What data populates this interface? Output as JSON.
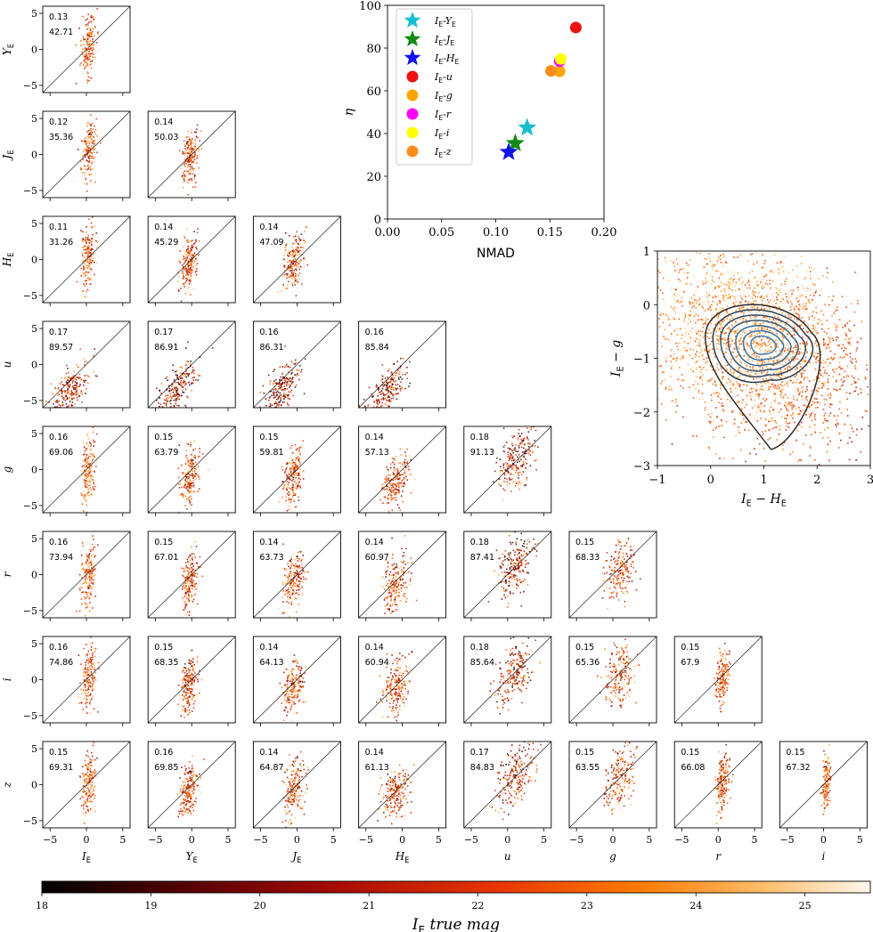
{
  "grid": {
    "ylabels": [
      {
        "main": "Y",
        "sub": "E"
      },
      {
        "main": "J",
        "sub": "E"
      },
      {
        "main": "H",
        "sub": "E"
      },
      {
        "main": "u",
        "sub": ""
      },
      {
        "main": "g",
        "sub": ""
      },
      {
        "main": "r",
        "sub": ""
      },
      {
        "main": "i",
        "sub": ""
      },
      {
        "main": "z",
        "sub": ""
      }
    ],
    "xlabels": [
      {
        "main": "I",
        "sub": "E"
      },
      {
        "main": "Y",
        "sub": "E"
      },
      {
        "main": "J",
        "sub": "E"
      },
      {
        "main": "H",
        "sub": "E"
      },
      {
        "main": "u",
        "sub": ""
      },
      {
        "main": "g",
        "sub": ""
      },
      {
        "main": "r",
        "sub": ""
      },
      {
        "main": "i",
        "sub": ""
      }
    ],
    "ticks": [
      "−5",
      "0",
      "5"
    ],
    "panels": [
      [
        {
          "nmad": "0.13",
          "eta": "42.71"
        }
      ],
      [
        {
          "nmad": "0.12",
          "eta": "35.36"
        },
        {
          "nmad": "0.14",
          "eta": "50.03"
        }
      ],
      [
        {
          "nmad": "0.11",
          "eta": "31.26"
        },
        {
          "nmad": "0.14",
          "eta": "45.29"
        },
        {
          "nmad": "0.14",
          "eta": "47.09"
        }
      ],
      [
        {
          "nmad": "0.17",
          "eta": "89.57"
        },
        {
          "nmad": "0.17",
          "eta": "86.91"
        },
        {
          "nmad": "0.16",
          "eta": "86.31"
        },
        {
          "nmad": "0.16",
          "eta": "85.84"
        }
      ],
      [
        {
          "nmad": "0.16",
          "eta": "69.06"
        },
        {
          "nmad": "0.15",
          "eta": "63.79"
        },
        {
          "nmad": "0.15",
          "eta": "59.81"
        },
        {
          "nmad": "0.14",
          "eta": "57.13"
        },
        {
          "nmad": "0.18",
          "eta": "91.13"
        }
      ],
      [
        {
          "nmad": "0.16",
          "eta": "73.94"
        },
        {
          "nmad": "0.15",
          "eta": "67.01"
        },
        {
          "nmad": "0.14",
          "eta": "63.73"
        },
        {
          "nmad": "0.14",
          "eta": "60.97"
        },
        {
          "nmad": "0.18",
          "eta": "87.41"
        },
        {
          "nmad": "0.15",
          "eta": "68.33"
        }
      ],
      [
        {
          "nmad": "0.16",
          "eta": "74.86"
        },
        {
          "nmad": "0.15",
          "eta": "68.35"
        },
        {
          "nmad": "0.14",
          "eta": "64.13"
        },
        {
          "nmad": "0.14",
          "eta": "60.94"
        },
        {
          "nmad": "0.18",
          "eta": "85.64"
        },
        {
          "nmad": "0.15",
          "eta": "65.36"
        },
        {
          "nmad": "0.15",
          "eta": "67.9"
        }
      ],
      [
        {
          "nmad": "0.15",
          "eta": "69.31"
        },
        {
          "nmad": "0.16",
          "eta": "69.85"
        },
        {
          "nmad": "0.14",
          "eta": "64.87"
        },
        {
          "nmad": "0.14",
          "eta": "61.13"
        },
        {
          "nmad": "0.17",
          "eta": "84.83"
        },
        {
          "nmad": "0.15",
          "eta": "63.55"
        },
        {
          "nmad": "0.15",
          "eta": "66.08"
        },
        {
          "nmad": "0.15",
          "eta": "67.32"
        }
      ]
    ]
  },
  "chart_data": [
    {
      "type": "scatter",
      "title": "",
      "xlabel": "NMAD",
      "ylabel": "η",
      "xlim": [
        0.0,
        0.2
      ],
      "ylim": [
        0,
        100
      ],
      "xticks": [
        "0.00",
        "0.05",
        "0.10",
        "0.15",
        "0.20"
      ],
      "yticks": [
        "0",
        "20",
        "40",
        "60",
        "80",
        "100"
      ],
      "series": [
        {
          "name": "IE-YE",
          "label_main": "I",
          "label_sub": "E",
          "label_rest": "-Y",
          "label_rest_sub": "E",
          "marker": "star",
          "color": "#17becf",
          "x": 0.129,
          "y": 42.7
        },
        {
          "name": "IE-JE",
          "label_main": "I",
          "label_sub": "E",
          "label_rest": "-J",
          "label_rest_sub": "E",
          "marker": "star",
          "color": "#138a13",
          "x": 0.118,
          "y": 35.4
        },
        {
          "name": "IE-HE",
          "label_main": "I",
          "label_sub": "E",
          "label_rest": "-H",
          "label_rest_sub": "E",
          "marker": "star",
          "color": "#1010ee",
          "x": 0.112,
          "y": 31.3
        },
        {
          "name": "IE-u",
          "label_main": "I",
          "label_sub": "E",
          "label_rest": "-u",
          "label_rest_sub": "",
          "marker": "circle",
          "color": "#ee1111",
          "x": 0.174,
          "y": 89.6
        },
        {
          "name": "IE-g",
          "label_main": "I",
          "label_sub": "E",
          "label_rest": "-g",
          "label_rest_sub": "",
          "marker": "circle",
          "color": "#ffa500",
          "x": 0.159,
          "y": 69.1
        },
        {
          "name": "IE-r",
          "label_main": "I",
          "label_sub": "E",
          "label_rest": "-r",
          "label_rest_sub": "",
          "marker": "circle",
          "color": "#ff00ff",
          "x": 0.159,
          "y": 73.9
        },
        {
          "name": "IE-i",
          "label_main": "I",
          "label_sub": "E",
          "label_rest": "-i",
          "label_rest_sub": "",
          "marker": "circle",
          "color": "#ffff00",
          "x": 0.16,
          "y": 74.9
        },
        {
          "name": "IE-z",
          "label_main": "I",
          "label_sub": "E",
          "label_rest": "-z",
          "label_rest_sub": "",
          "marker": "circle",
          "color": "#ff8c1a",
          "x": 0.151,
          "y": 69.3
        }
      ]
    },
    {
      "type": "scatter",
      "title": "",
      "xlabel_main": "I",
      "xlabel_sub": "E",
      "xlabel_rest": " − H",
      "xlabel_rest_sub": "E",
      "ylabel_main": "I",
      "ylabel_sub": "E",
      "ylabel_rest": " − g",
      "xlim": [
        -1,
        3
      ],
      "ylim": [
        -3,
        1
      ],
      "xticks": [
        "−1",
        "0",
        "1",
        "2",
        "3"
      ],
      "yticks": [
        "−3",
        "−2",
        "−1",
        "0",
        "1"
      ],
      "contour_center": [
        0.85,
        -0.7
      ]
    },
    {
      "type": "heatmap",
      "colorbar_label_main": "I",
      "colorbar_label_sub": "E",
      "colorbar_label_rest": " true mag",
      "range": [
        18,
        25.6
      ],
      "ticks": [
        "18",
        "19",
        "20",
        "21",
        "22",
        "23",
        "24",
        "25"
      ]
    }
  ]
}
